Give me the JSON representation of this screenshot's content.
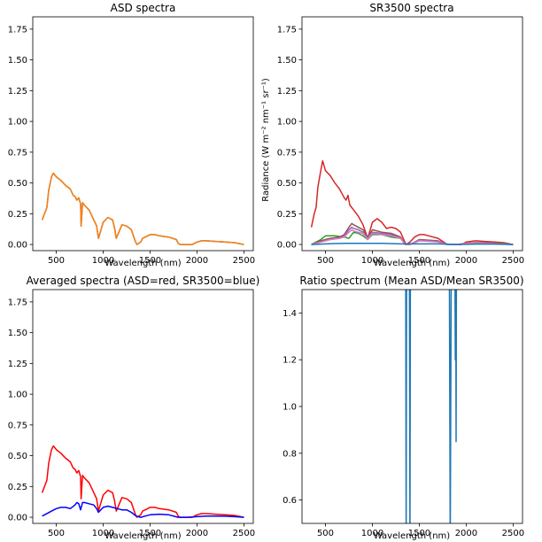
{
  "chart_data": [
    {
      "type": "line",
      "title": "ASD spectra",
      "xlabel": "Wavelength (nm)",
      "ylabel": "",
      "xlim": [
        250,
        2600
      ],
      "ylim": [
        -0.05,
        1.85
      ],
      "xticks": [
        500,
        1000,
        1500,
        2000,
        2500
      ],
      "yticks": [
        0.0,
        0.25,
        0.5,
        0.75,
        1.0,
        1.25,
        1.5,
        1.75
      ],
      "ytick_labels": [
        "0.00",
        "0.25",
        "0.50",
        "0.75",
        "1.00",
        "1.25",
        "1.50",
        "1.75"
      ],
      "series": [
        {
          "color": "#1f77b4",
          "x": [
            350,
            380,
            400,
            420,
            450,
            470,
            500,
            550,
            600,
            650,
            680,
            700,
            720,
            740,
            760,
            765,
            780,
            800,
            850,
            900,
            930,
            950,
            1000,
            1050,
            1100,
            1120,
            1140,
            1200,
            1250,
            1300,
            1340,
            1360,
            1380,
            1400,
            1420,
            1450,
            1500,
            1550,
            1600,
            1700,
            1780,
            1800,
            1820,
            1850,
            1900,
            1950,
            2000,
            2050,
            2100,
            2200,
            2300,
            2400,
            2500
          ],
          "y": [
            0.2,
            0.26,
            0.3,
            0.44,
            0.55,
            0.58,
            0.55,
            0.52,
            0.48,
            0.45,
            0.4,
            0.39,
            0.36,
            0.38,
            0.33,
            0.15,
            0.34,
            0.32,
            0.28,
            0.2,
            0.15,
            0.05,
            0.18,
            0.22,
            0.2,
            0.14,
            0.05,
            0.16,
            0.15,
            0.12,
            0.03,
            0.0,
            0.01,
            0.02,
            0.05,
            0.06,
            0.08,
            0.08,
            0.07,
            0.06,
            0.04,
            0.01,
            0.0,
            0.0,
            0.0,
            0.0,
            0.02,
            0.03,
            0.03,
            0.025,
            0.02,
            0.015,
            0.0
          ]
        },
        {
          "color": "#ff7f0e",
          "x": [
            350,
            380,
            400,
            420,
            450,
            470,
            500,
            550,
            600,
            650,
            680,
            700,
            720,
            740,
            760,
            765,
            780,
            800,
            850,
            900,
            930,
            950,
            1000,
            1050,
            1100,
            1120,
            1140,
            1200,
            1250,
            1300,
            1340,
            1360,
            1380,
            1400,
            1420,
            1450,
            1500,
            1550,
            1600,
            1700,
            1780,
            1800,
            1820,
            1850,
            1900,
            1950,
            2000,
            2050,
            2100,
            2200,
            2300,
            2400,
            2500
          ],
          "y": [
            0.2,
            0.26,
            0.3,
            0.44,
            0.55,
            0.58,
            0.55,
            0.52,
            0.48,
            0.45,
            0.4,
            0.39,
            0.36,
            0.38,
            0.33,
            0.15,
            0.34,
            0.32,
            0.28,
            0.2,
            0.15,
            0.05,
            0.18,
            0.22,
            0.2,
            0.14,
            0.05,
            0.16,
            0.15,
            0.12,
            0.03,
            0.0,
            0.01,
            0.02,
            0.05,
            0.06,
            0.08,
            0.08,
            0.07,
            0.06,
            0.04,
            0.01,
            0.0,
            0.0,
            0.0,
            0.0,
            0.02,
            0.03,
            0.03,
            0.025,
            0.02,
            0.015,
            0.0
          ]
        }
      ]
    },
    {
      "type": "line",
      "title": "SR3500 spectra",
      "xlabel": "Wavelength (nm)",
      "ylabel": "Radiance (W m⁻² nm⁻¹ sr⁻¹)",
      "xlim": [
        250,
        2600
      ],
      "ylim": [
        -0.05,
        1.85
      ],
      "xticks": [
        500,
        1000,
        1500,
        2000,
        2500
      ],
      "yticks": [
        0.0,
        0.25,
        0.5,
        0.75,
        1.0,
        1.25,
        1.5,
        1.75
      ],
      "ytick_labels": [
        "0.00",
        "0.25",
        "0.50",
        "0.75",
        "1.00",
        "1.25",
        "1.50",
        "1.75"
      ],
      "series": [
        {
          "color": "#d62728",
          "x": [
            350,
            380,
            400,
            420,
            450,
            470,
            500,
            550,
            600,
            650,
            700,
            720,
            740,
            760,
            780,
            800,
            850,
            900,
            950,
            1000,
            1050,
            1100,
            1150,
            1200,
            1250,
            1300,
            1340,
            1360,
            1400,
            1450,
            1500,
            1550,
            1600,
            1700,
            1800,
            1850,
            1900,
            1950,
            2000,
            2100,
            2200,
            2300,
            2400,
            2500
          ],
          "y": [
            0.14,
            0.25,
            0.3,
            0.47,
            0.6,
            0.68,
            0.6,
            0.56,
            0.5,
            0.45,
            0.38,
            0.36,
            0.4,
            0.32,
            0.3,
            0.28,
            0.23,
            0.16,
            0.05,
            0.18,
            0.21,
            0.18,
            0.13,
            0.14,
            0.13,
            0.1,
            0.03,
            0.0,
            0.02,
            0.06,
            0.08,
            0.08,
            0.07,
            0.05,
            0.0,
            0.0,
            0.0,
            0.0,
            0.02,
            0.03,
            0.025,
            0.02,
            0.015,
            0.0
          ]
        },
        {
          "color": "#2ca02c",
          "x": [
            350,
            400,
            450,
            500,
            600,
            700,
            750,
            800,
            850,
            900,
            950,
            1000,
            1100,
            1200,
            1300,
            1350,
            1400,
            1500,
            1600,
            1700,
            1800,
            1900,
            2000,
            2100,
            2200,
            2300,
            2400,
            2500
          ],
          "y": [
            0.0,
            0.02,
            0.04,
            0.07,
            0.07,
            0.06,
            0.05,
            0.1,
            0.09,
            0.07,
            0.04,
            0.08,
            0.08,
            0.06,
            0.05,
            0.0,
            0.0,
            0.03,
            0.03,
            0.02,
            0.0,
            0.0,
            0.01,
            0.015,
            0.015,
            0.01,
            0.01,
            0.0
          ]
        },
        {
          "color": "#8c564b",
          "x": [
            350,
            450,
            550,
            650,
            700,
            750,
            780,
            800,
            850,
            900,
            950,
            1000,
            1100,
            1200,
            1300,
            1350,
            1400,
            1500,
            1700,
            1800,
            1900,
            2000,
            2200,
            2500
          ],
          "y": [
            0.0,
            0.03,
            0.05,
            0.06,
            0.08,
            0.14,
            0.17,
            0.16,
            0.14,
            0.12,
            0.06,
            0.12,
            0.1,
            0.09,
            0.06,
            0.0,
            0.0,
            0.04,
            0.03,
            0.0,
            0.0,
            0.01,
            0.015,
            0.0
          ]
        },
        {
          "color": "#9467bd",
          "x": [
            350,
            450,
            550,
            650,
            700,
            750,
            780,
            800,
            850,
            900,
            950,
            1000,
            1100,
            1200,
            1300,
            1350,
            1400,
            1500,
            1700,
            1800,
            1900,
            2000,
            2200,
            2500
          ],
          "y": [
            0.0,
            0.02,
            0.04,
            0.05,
            0.07,
            0.12,
            0.14,
            0.13,
            0.12,
            0.1,
            0.05,
            0.1,
            0.09,
            0.08,
            0.05,
            0.0,
            0.0,
            0.035,
            0.025,
            0.0,
            0.0,
            0.01,
            0.012,
            0.0
          ]
        },
        {
          "color": "#e377c2",
          "x": [
            350,
            450,
            550,
            650,
            700,
            750,
            780,
            800,
            850,
            900,
            950,
            1000,
            1100,
            1200,
            1300,
            1350,
            1400,
            1500,
            1700,
            1800,
            1900,
            2000,
            2200,
            2500
          ],
          "y": [
            0.0,
            0.02,
            0.04,
            0.05,
            0.06,
            0.1,
            0.12,
            0.11,
            0.1,
            0.09,
            0.04,
            0.09,
            0.08,
            0.07,
            0.05,
            0.0,
            0.0,
            0.03,
            0.02,
            0.0,
            0.0,
            0.01,
            0.01,
            0.0
          ]
        },
        {
          "color": "#1f77b4",
          "x": [
            350,
            500,
            700,
            900,
            1100,
            1300,
            1500,
            1700,
            1900,
            2100,
            2300,
            2500
          ],
          "y": [
            0.0,
            0.005,
            0.01,
            0.01,
            0.01,
            0.005,
            0.005,
            0.005,
            0.0,
            0.003,
            0.003,
            0.0
          ]
        }
      ]
    },
    {
      "type": "line",
      "title": "Averaged spectra (ASD=red, SR3500=blue)",
      "xlabel": "Wavelength (nm)",
      "ylabel": "",
      "xlim": [
        250,
        2600
      ],
      "ylim": [
        -0.05,
        1.85
      ],
      "xticks": [
        500,
        1000,
        1500,
        2000,
        2500
      ],
      "yticks": [
        0.0,
        0.25,
        0.5,
        0.75,
        1.0,
        1.25,
        1.5,
        1.75
      ],
      "ytick_labels": [
        "0.00",
        "0.25",
        "0.50",
        "0.75",
        "1.00",
        "1.25",
        "1.50",
        "1.75"
      ],
      "series": [
        {
          "color": "#ff0000",
          "x": [
            350,
            380,
            400,
            420,
            450,
            470,
            500,
            550,
            600,
            650,
            680,
            700,
            720,
            740,
            760,
            765,
            780,
            800,
            850,
            900,
            930,
            950,
            1000,
            1050,
            1100,
            1120,
            1140,
            1200,
            1250,
            1300,
            1340,
            1360,
            1380,
            1400,
            1420,
            1450,
            1500,
            1550,
            1600,
            1700,
            1780,
            1800,
            1820,
            1850,
            1900,
            1950,
            2000,
            2050,
            2100,
            2200,
            2300,
            2400,
            2500
          ],
          "y": [
            0.2,
            0.26,
            0.3,
            0.44,
            0.55,
            0.58,
            0.55,
            0.52,
            0.48,
            0.45,
            0.4,
            0.39,
            0.36,
            0.38,
            0.33,
            0.15,
            0.34,
            0.32,
            0.28,
            0.2,
            0.15,
            0.05,
            0.18,
            0.22,
            0.2,
            0.14,
            0.05,
            0.16,
            0.15,
            0.12,
            0.03,
            0.0,
            0.01,
            0.02,
            0.05,
            0.06,
            0.08,
            0.08,
            0.07,
            0.06,
            0.04,
            0.01,
            0.0,
            0.0,
            0.0,
            0.0,
            0.02,
            0.03,
            0.03,
            0.025,
            0.02,
            0.015,
            0.0
          ]
        },
        {
          "color": "#0000ff",
          "x": [
            350,
            400,
            450,
            500,
            550,
            600,
            650,
            700,
            720,
            740,
            760,
            780,
            800,
            850,
            900,
            930,
            950,
            1000,
            1050,
            1100,
            1150,
            1200,
            1250,
            1300,
            1350,
            1400,
            1450,
            1500,
            1600,
            1700,
            1800,
            1900,
            2000,
            2100,
            2200,
            2300,
            2400,
            2500
          ],
          "y": [
            0.01,
            0.03,
            0.05,
            0.07,
            0.08,
            0.08,
            0.07,
            0.1,
            0.12,
            0.11,
            0.06,
            0.12,
            0.12,
            0.11,
            0.1,
            0.07,
            0.04,
            0.08,
            0.09,
            0.08,
            0.07,
            0.06,
            0.06,
            0.04,
            0.01,
            0.0,
            0.01,
            0.02,
            0.025,
            0.02,
            0.0,
            0.0,
            0.005,
            0.01,
            0.01,
            0.008,
            0.005,
            0.0
          ]
        }
      ]
    },
    {
      "type": "line",
      "title": "Ratio spectrum (Mean ASD/Mean SR3500)",
      "xlabel": "Wavelength (nm)",
      "ylabel": "",
      "xlim": [
        250,
        2600
      ],
      "ylim": [
        0.5,
        1.5
      ],
      "xticks": [
        500,
        1000,
        1500,
        2000,
        2500
      ],
      "yticks": [
        0.6,
        0.8,
        1.0,
        1.2,
        1.4
      ],
      "ytick_labels": [
        "0.6",
        "0.8",
        "1.0",
        "1.2",
        "1.4"
      ],
      "series": [
        {
          "color": "#1f77b4",
          "segments": [
            {
              "x": [
                1355,
                1360,
                1365
              ],
              "y": [
                1.6,
                0.4,
                1.6
              ]
            },
            {
              "x": [
                1395,
                1400,
                1405
              ],
              "y": [
                1.6,
                0.4,
                1.6
              ]
            },
            {
              "x": [
                1820,
                1830,
                1840
              ],
              "y": [
                1.6,
                0.4,
                1.6
              ]
            },
            {
              "x": [
                1880,
                1884,
                1888,
                1892,
                1896,
                1900
              ],
              "y": [
                1.6,
                1.2,
                1.6,
                0.85,
                1.6,
                1.6
              ]
            }
          ]
        }
      ]
    }
  ]
}
